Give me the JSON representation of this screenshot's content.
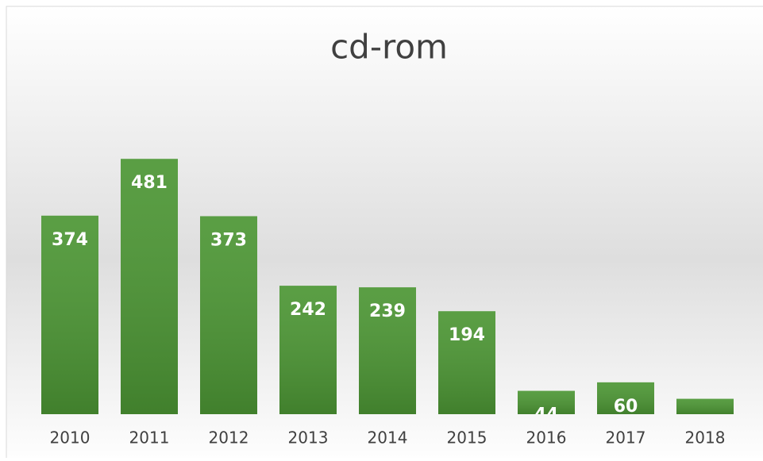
{
  "chart_data": {
    "type": "bar",
    "title": "cd-rom",
    "categories": [
      "2010",
      "2011",
      "2012",
      "2013",
      "2014",
      "2015",
      "2016",
      "2017",
      "2018"
    ],
    "values": [
      374,
      481,
      373,
      242,
      239,
      194,
      44,
      60,
      29
    ],
    "color": "#4c9634",
    "ylim": [
      0,
      500
    ]
  }
}
